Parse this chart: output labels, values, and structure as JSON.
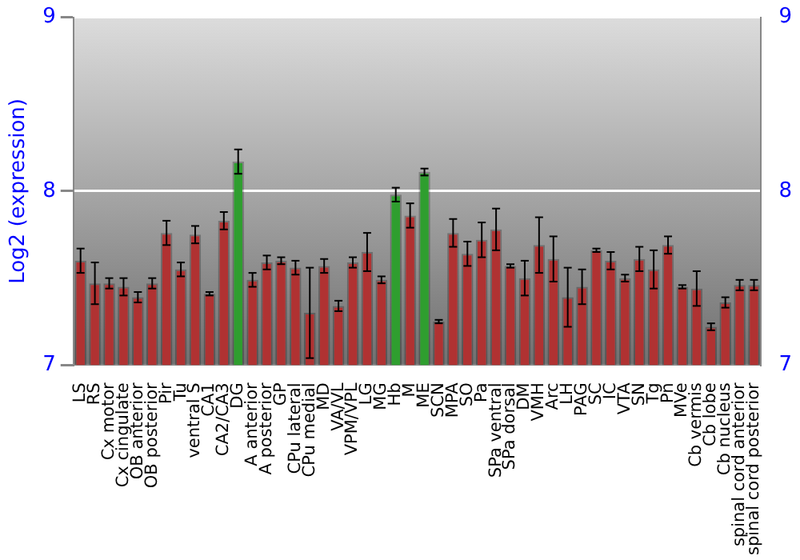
{
  "chart_data": {
    "type": "bar",
    "ylabel": "Log2 (expression)",
    "categories": [
      "LS",
      "RS",
      "Cx motor",
      "Cx cingulate",
      "OB anterior",
      "OB posterior",
      "Pir",
      "Tu",
      "ventral S",
      "CA1",
      "CA2/CA3",
      "DG",
      "A anterior",
      "A posterior",
      "GP",
      "CPu lateral",
      "CPu medial",
      "MD",
      "VA/VL",
      "VPM/VPL",
      "LG",
      "MG",
      "Hb",
      "M",
      "ME",
      "SCN",
      "MPA",
      "SO",
      "Pa",
      "SPa ventral",
      "SPa dorsal",
      "DM",
      "VMH",
      "Arc",
      "LH",
      "PAG",
      "SC",
      "IC",
      "VTA",
      "SN",
      "Tg",
      "Pn",
      "MVe",
      "Cb vermis",
      "Cb lobe",
      "Cb nucleus",
      "spinal cord anterior",
      "spinal cord posterior"
    ],
    "values": [
      7.6,
      7.47,
      7.47,
      7.45,
      7.39,
      7.47,
      7.76,
      7.55,
      7.75,
      7.41,
      7.83,
      8.17,
      7.49,
      7.59,
      7.6,
      7.56,
      7.3,
      7.57,
      7.34,
      7.59,
      7.65,
      7.49,
      7.98,
      7.86,
      8.11,
      7.25,
      7.76,
      7.64,
      7.72,
      7.78,
      7.57,
      7.5,
      7.69,
      7.61,
      7.39,
      7.45,
      7.66,
      7.6,
      7.5,
      7.61,
      7.55,
      7.69,
      7.45,
      7.44,
      7.22,
      7.36,
      7.46,
      7.46
    ],
    "errors": [
      0.07,
      0.12,
      0.03,
      0.05,
      0.03,
      0.03,
      0.07,
      0.04,
      0.05,
      0.01,
      0.05,
      0.07,
      0.04,
      0.04,
      0.02,
      0.04,
      0.26,
      0.04,
      0.03,
      0.03,
      0.11,
      0.02,
      0.04,
      0.07,
      0.02,
      0.01,
      0.08,
      0.07,
      0.1,
      0.12,
      0.01,
      0.1,
      0.16,
      0.13,
      0.17,
      0.1,
      0.01,
      0.05,
      0.02,
      0.07,
      0.11,
      0.05,
      0.01,
      0.1,
      0.02,
      0.03,
      0.03,
      0.03
    ],
    "colors": [
      "#b03232",
      "#b03232",
      "#b03232",
      "#b03232",
      "#b03232",
      "#b03232",
      "#b03232",
      "#b03232",
      "#b03232",
      "#b03232",
      "#b03232",
      "#2f9e2f",
      "#b03232",
      "#b03232",
      "#b03232",
      "#b03232",
      "#b03232",
      "#b03232",
      "#b03232",
      "#b03232",
      "#b03232",
      "#b03232",
      "#2f9e2f",
      "#b03232",
      "#2f9e2f",
      "#b03232",
      "#b03232",
      "#b03232",
      "#b03232",
      "#b03232",
      "#b03232",
      "#b03232",
      "#b03232",
      "#b03232",
      "#b03232",
      "#b03232",
      "#b03232",
      "#b03232",
      "#b03232",
      "#b03232",
      "#b03232",
      "#b03232",
      "#b03232",
      "#b03232",
      "#b03232",
      "#b03232",
      "#b03232",
      "#b03232"
    ],
    "ylim": [
      7,
      9
    ],
    "yticks": [
      7,
      8,
      9
    ],
    "y2lim": [
      7,
      9
    ],
    "y2ticks": [
      7,
      8,
      9
    ],
    "grid": "y",
    "legend": false
  }
}
